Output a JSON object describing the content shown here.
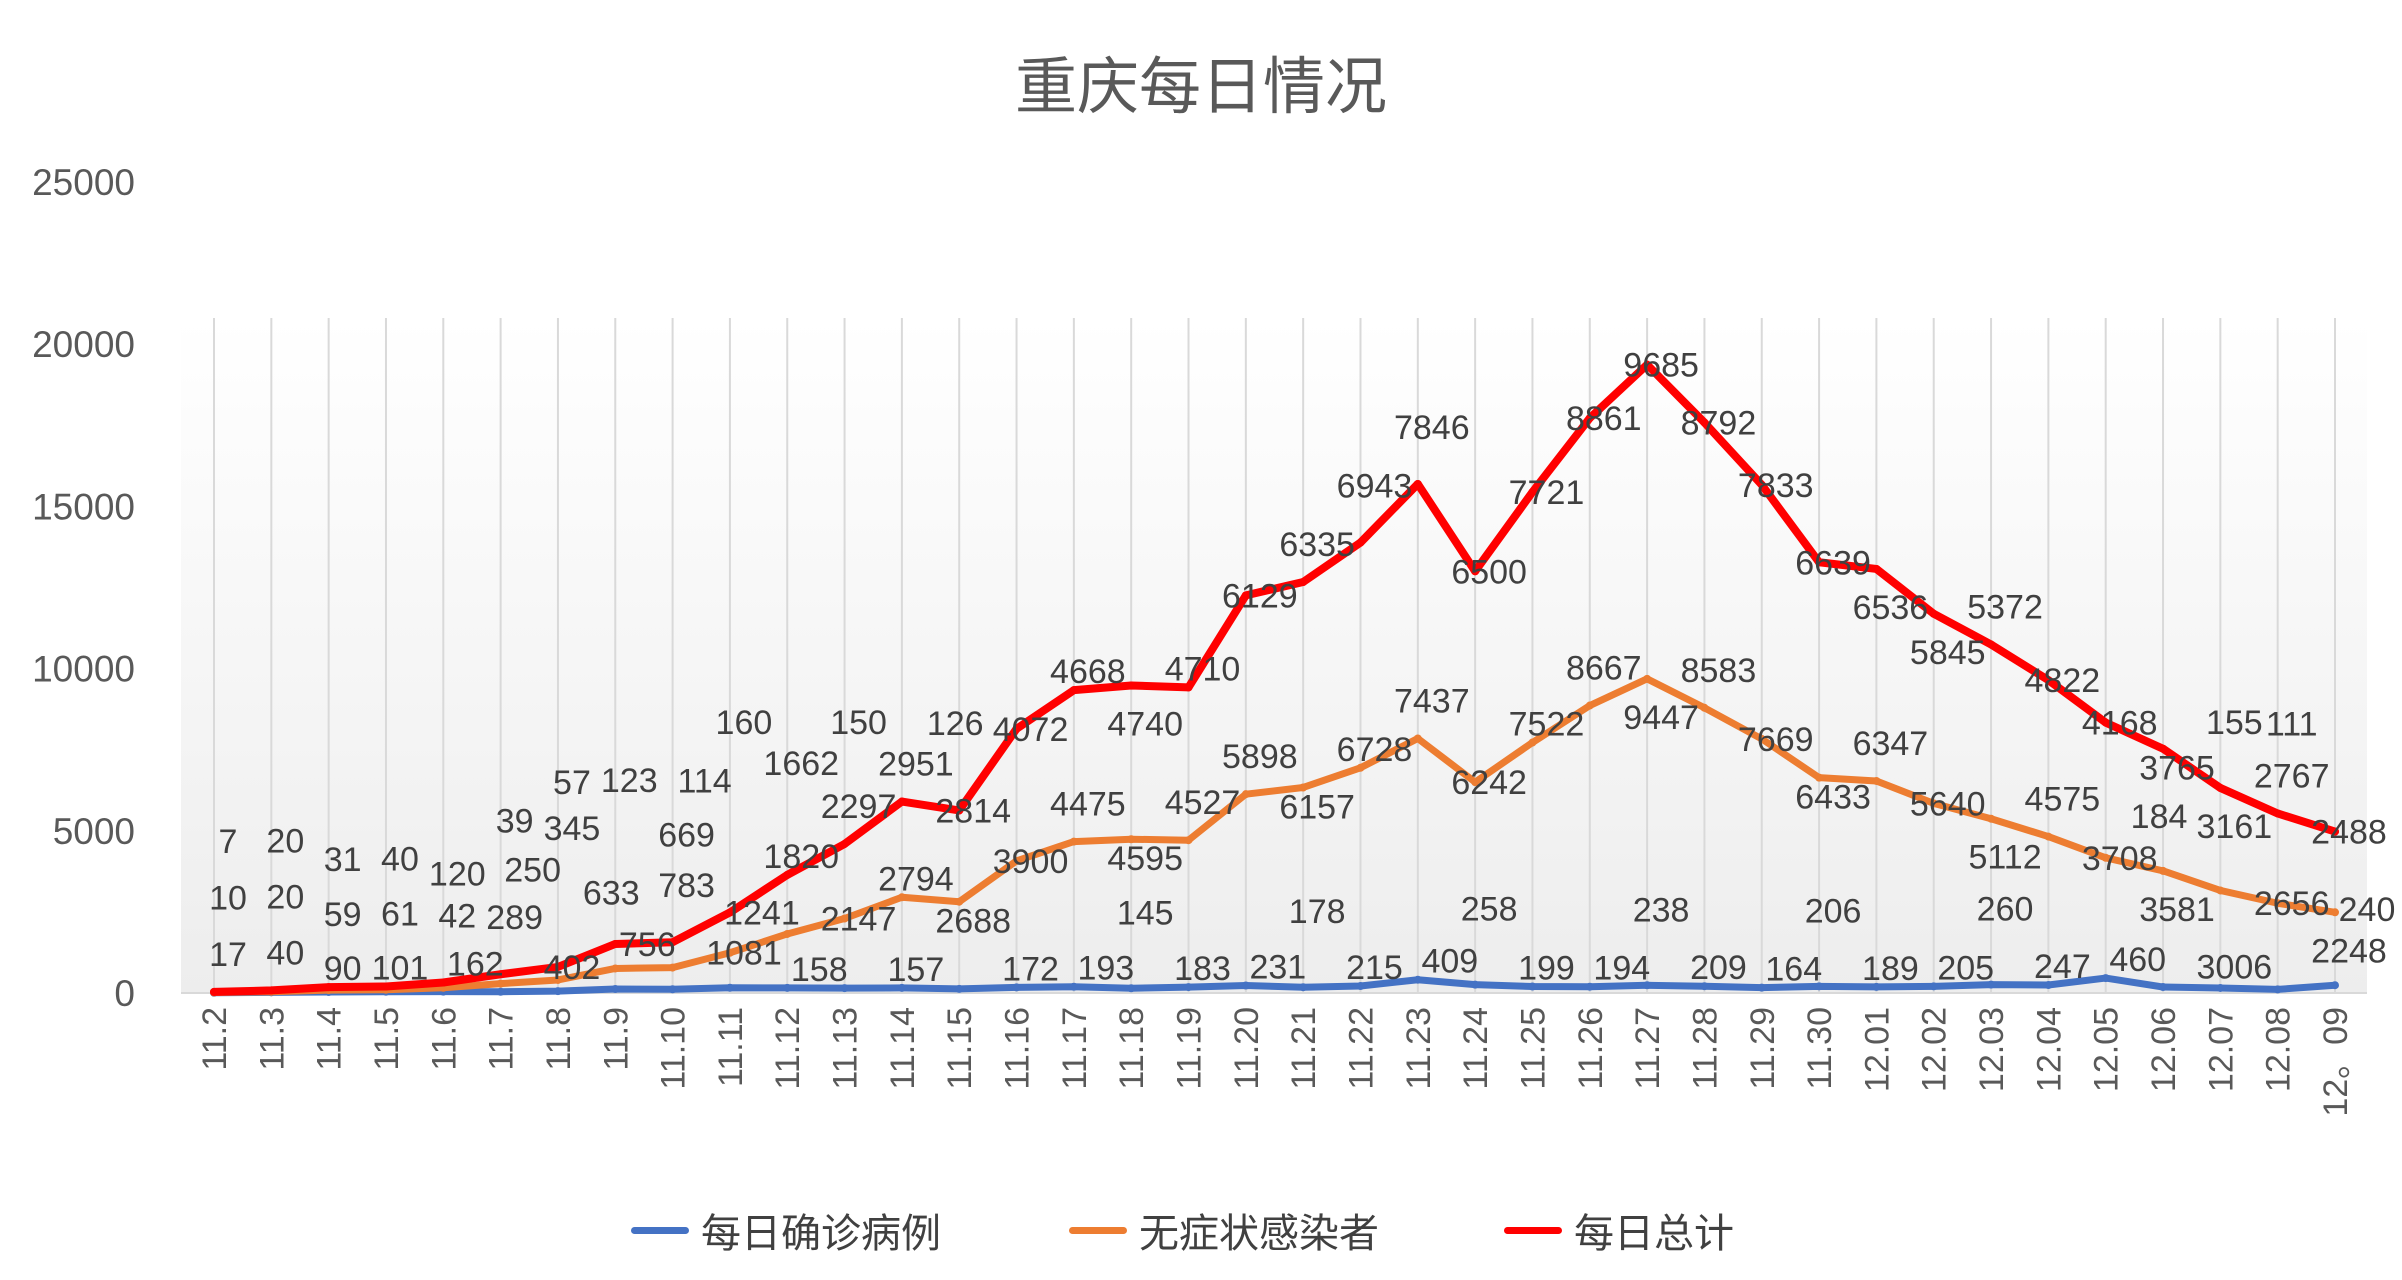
{
  "chart_data": {
    "type": "line",
    "stacked": true,
    "title": "重庆每日情况",
    "xlabel": "",
    "ylabel": "",
    "ylim": [
      0,
      25000
    ],
    "yticks": [
      0,
      5000,
      10000,
      15000,
      20000,
      25000
    ],
    "grid": "vertical",
    "legend": "bottom",
    "categories": [
      "11.2",
      "11.3",
      "11.4",
      "11.5",
      "11.6",
      "11.7",
      "11.8",
      "11.9",
      "11.10",
      "11.11",
      "11.12",
      "11.13",
      "11.14",
      "11.15",
      "11.16",
      "11.17",
      "11.18",
      "11.19",
      "11.20",
      "11.21",
      "11.22",
      "11.23",
      "11.24",
      "11.25",
      "11.26",
      "11.27",
      "11.28",
      "11.29",
      "11.30",
      "12.01",
      "12.02",
      "12.03",
      "12.04",
      "12.05",
      "12.06",
      "12.07",
      "12.08",
      "12。09"
    ],
    "series": [
      {
        "name": "每日确诊病例",
        "color": "#4472c4",
        "values": [
          7,
          20,
          31,
          40,
          42,
          39,
          57,
          123,
          114,
          160,
          158,
          150,
          157,
          126,
          172,
          193,
          145,
          183,
          231,
          178,
          215,
          409,
          258,
          199,
          194,
          238,
          209,
          164,
          206,
          189,
          205,
          260,
          247,
          460,
          184,
          155,
          111,
          240
        ]
      },
      {
        "name": "无症状感染者",
        "color": "#ed7d31",
        "values": [
          10,
          20,
          59,
          61,
          120,
          250,
          345,
          633,
          669,
          1081,
          1662,
          2147,
          2794,
          2688,
          3900,
          4475,
          4595,
          4527,
          5898,
          6157,
          6728,
          7437,
          6242,
          7522,
          8667,
          9447,
          8583,
          7669,
          6433,
          6347,
          5640,
          5112,
          4575,
          3708,
          3581,
          3006,
          2656,
          2248
        ]
      },
      {
        "name": "每日总计",
        "color": "#ff0000",
        "values": [
          17,
          40,
          90,
          101,
          162,
          289,
          402,
          756,
          783,
          1241,
          1820,
          2297,
          2951,
          2814,
          4072,
          4668,
          4740,
          4710,
          6129,
          6335,
          6943,
          7846,
          6500,
          7721,
          8861,
          9685,
          8792,
          7833,
          6639,
          6536,
          5845,
          5372,
          4822,
          4168,
          3765,
          3161,
          2767,
          2488
        ]
      }
    ]
  }
}
